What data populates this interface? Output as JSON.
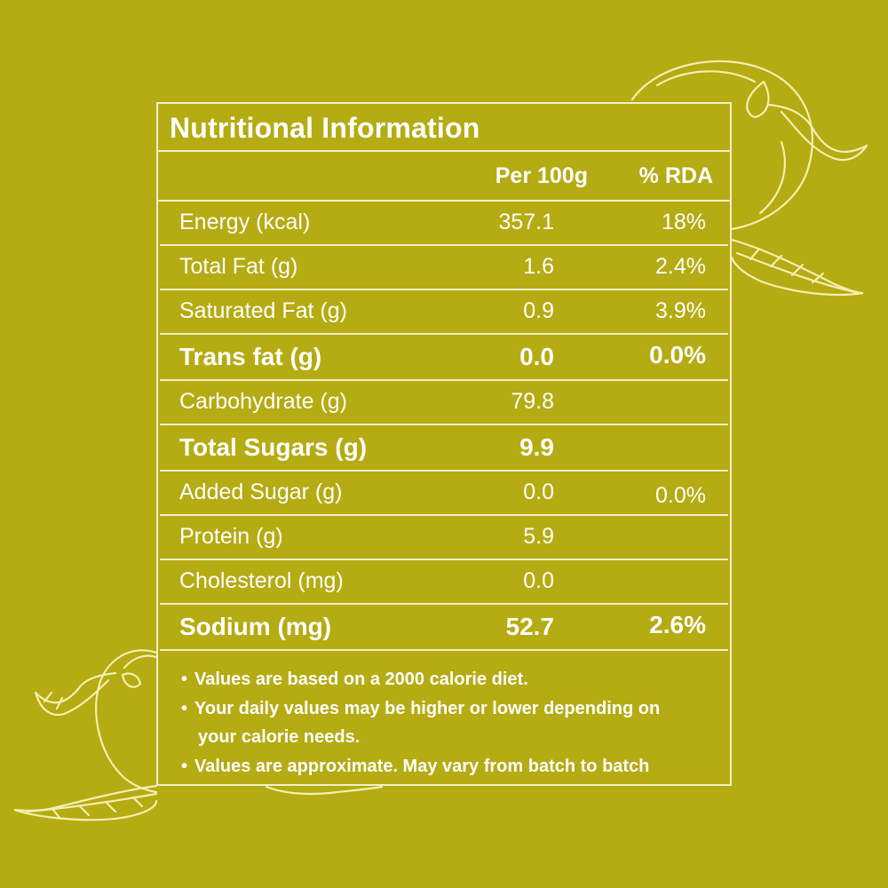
{
  "label": {
    "title": "Nutritional Information",
    "columns": {
      "per_100g": "Per 100g",
      "rda": "% RDA"
    },
    "rows": [
      {
        "name": "Energy (kcal)",
        "per_100g": "357.1",
        "rda": "18%",
        "bold": false
      },
      {
        "name": "Total Fat (g)",
        "per_100g": "1.6",
        "rda": "2.4%",
        "bold": false
      },
      {
        "name": "Saturated Fat (g)",
        "per_100g": "0.9",
        "rda": "3.9%",
        "bold": false
      },
      {
        "name": "Trans fat (g)",
        "per_100g": "0.0",
        "rda": "0.0%",
        "bold": true
      },
      {
        "name": "Carbohydrate (g)",
        "per_100g": "79.8",
        "rda": "",
        "bold": false
      },
      {
        "name": "Total Sugars (g)",
        "per_100g": "9.9",
        "rda": "",
        "bold": true
      },
      {
        "name": "Added Sugar (g)",
        "per_100g": "0.0",
        "rda": "0.0%",
        "bold": false
      },
      {
        "name": "Protein (g)",
        "per_100g": "5.9",
        "rda": "",
        "bold": false
      },
      {
        "name": "Cholesterol (mg)",
        "per_100g": "0.0",
        "rda": "",
        "bold": false
      },
      {
        "name": "Sodium (mg)",
        "per_100g": "52.7",
        "rda": "2.6%",
        "bold": true
      }
    ],
    "notes": [
      "Values are based on a 2000 calorie diet.",
      "Your daily values may be higher or lower depending on",
      "your calorie needs.",
      "Values are approximate. May vary from batch to batch"
    ]
  },
  "colors": {
    "background": "#b5ab12",
    "line": "#f2efc9",
    "illustration": "#f4efb0"
  },
  "illustration": "mango-illustration"
}
